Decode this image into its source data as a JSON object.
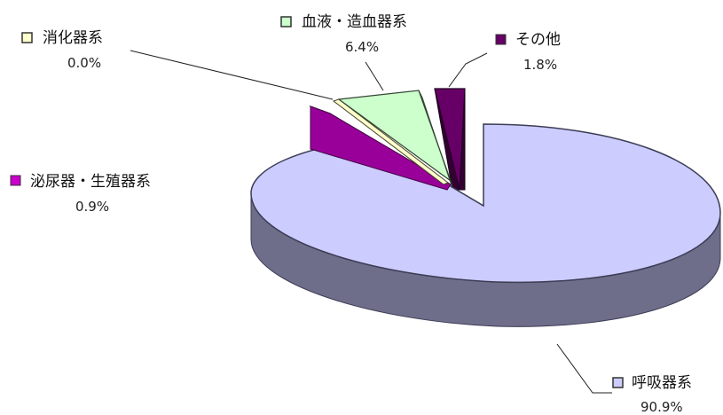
{
  "chart_data": {
    "type": "pie",
    "style": "3d-exploded",
    "slices": [
      {
        "name": "呼吸器系",
        "value": 90.9,
        "value_label": "90.9%",
        "color": "#ccccff",
        "side_color": "#6e6e8a"
      },
      {
        "name": "泌尿器・生殖器系",
        "value": 0.9,
        "value_label": "0.9%",
        "color": "#cc00cc",
        "side_color": "#660066"
      },
      {
        "name": "消化器系",
        "value": 0.0,
        "value_label": "0.0%",
        "color": "#ffffcc",
        "side_color": "#66664a"
      },
      {
        "name": "血液・造血器系",
        "value": 6.4,
        "value_label": "6.4%",
        "color": "#ccffcc",
        "side_color": "#5b6b5b"
      },
      {
        "name": "その他",
        "value": 1.8,
        "value_label": "1.8%",
        "color": "#660066",
        "side_color": "#330033"
      }
    ],
    "legend": "callout-labels"
  }
}
